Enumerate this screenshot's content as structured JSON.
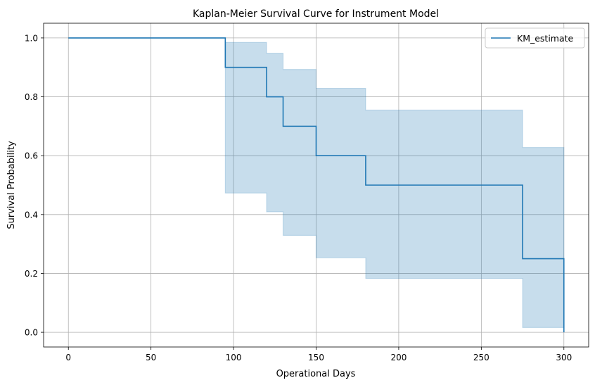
{
  "chart_data": {
    "type": "line",
    "step": "post",
    "title": "Kaplan-Meier Survival Curve for Instrument Model",
    "xlabel": "Operational Days",
    "ylabel": "Survival Probability",
    "xlim": [
      -15,
      315
    ],
    "ylim": [
      -0.05,
      1.05
    ],
    "xticks": [
      0,
      50,
      100,
      150,
      200,
      250,
      300
    ],
    "xtick_labels": [
      "0",
      "50",
      "100",
      "150",
      "200",
      "250",
      "300"
    ],
    "yticks": [
      0.0,
      0.2,
      0.4,
      0.6,
      0.8,
      1.0
    ],
    "ytick_labels": [
      "0.0",
      "0.2",
      "0.4",
      "0.6",
      "0.8",
      "1.0"
    ],
    "grid": true,
    "legend": {
      "position": "top-right",
      "entries": [
        "KM_estimate"
      ]
    },
    "series": [
      {
        "name": "KM_estimate",
        "color": "#1f77b4",
        "x": [
          0,
          95,
          120,
          130,
          150,
          180,
          275,
          300
        ],
        "y": [
          1.0,
          0.9,
          0.8,
          0.7,
          0.6,
          0.5,
          0.25,
          0.0
        ]
      }
    ],
    "confidence_band": {
      "color": "#1f77b4",
      "opacity": 0.25,
      "x": [
        95,
        120,
        130,
        150,
        180,
        275,
        300
      ],
      "lower": [
        0.473,
        0.409,
        0.329,
        0.253,
        0.183,
        0.016,
        0.016
      ],
      "upper": [
        0.985,
        0.948,
        0.893,
        0.829,
        0.755,
        0.628,
        0.628
      ]
    }
  }
}
